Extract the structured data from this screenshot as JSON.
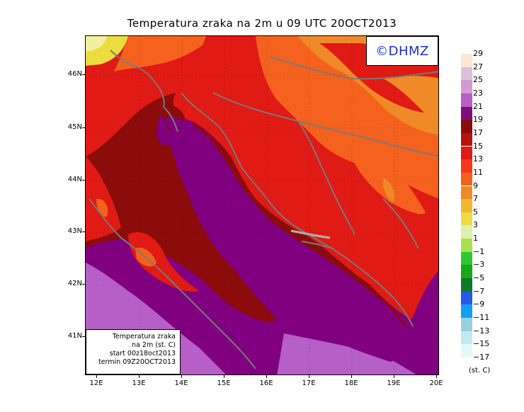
{
  "title": "Temperatura zraka na 2m u 09 UTC 20OCT2013",
  "logo": "©DHMZ",
  "info": {
    "line1": "Temperatura zraka",
    "line2": "na 2m (st. C)",
    "line3": "start 00z18oct2013",
    "line4": "termin 09Z20OCT2013"
  },
  "axes": {
    "lat_ticks": [
      "46N",
      "45N",
      "44N",
      "43N",
      "42N",
      "41N"
    ],
    "lon_ticks": [
      "12E",
      "13E",
      "14E",
      "15E",
      "16E",
      "17E",
      "18E",
      "19E",
      "20E"
    ]
  },
  "legend": {
    "unit": "(st. C)",
    "labels": [
      "29",
      "27",
      "25",
      "23",
      "21",
      "19",
      "17",
      "15",
      "13",
      "11",
      "9",
      "7",
      "5",
      "3",
      "1",
      "−1",
      "−3",
      "−5",
      "−7",
      "−9",
      "−11",
      "−13",
      "−15",
      "−17"
    ],
    "colors": [
      "#fbe6d4",
      "#dcc0d8",
      "#d49ad4",
      "#b65fc6",
      "#7e0d7e",
      "#8c0c0c",
      "#b81212",
      "#e01a14",
      "#f43a1c",
      "#f4621e",
      "#f08a28",
      "#f0b830",
      "#ecdc40",
      "#dcf0b0",
      "#a8e050",
      "#30c830",
      "#18a818",
      "#0e7a2a",
      "#2858e8",
      "#10a0f0",
      "#98d0e0",
      "#c4e8f0",
      "#e4f8f8"
    ]
  },
  "colors": {
    "sea_purple": "#800080",
    "coast_outline": "#7a7a7a",
    "logo_text": "#1a2fd6"
  }
}
